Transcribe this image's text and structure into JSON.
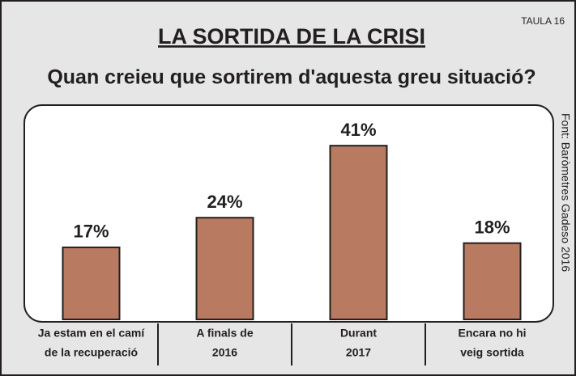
{
  "chart_data": {
    "type": "bar",
    "title": "LA SORTIDA DE LA CRISI",
    "subtitle": "Quan creieu que sortirem d'aquesta greu situació?",
    "tag": "TAULA 16",
    "source": "Font: Baròmetres Gadeso 2016",
    "categories": [
      [
        "Ja estam en el camí",
        "de la recuperació"
      ],
      [
        "A finals de",
        "2016"
      ],
      [
        "Durant",
        "2017"
      ],
      [
        "Encara no hi",
        "veig sortida"
      ]
    ],
    "values": [
      17,
      24,
      41,
      18
    ],
    "value_labels": [
      "17%",
      "24%",
      "41%",
      "18%"
    ],
    "color": "#b97a62",
    "ylim": [
      0,
      50
    ]
  }
}
